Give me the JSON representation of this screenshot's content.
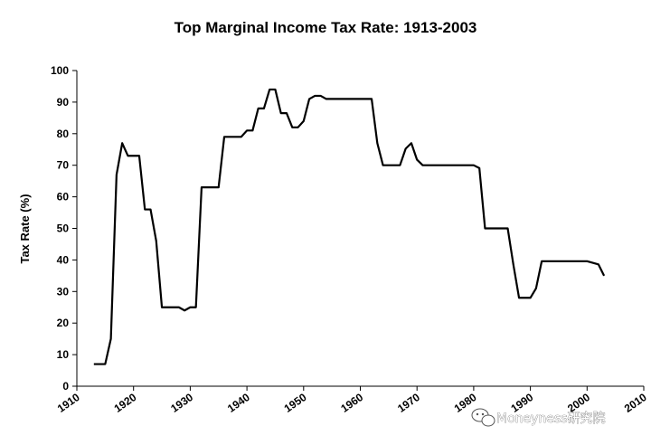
{
  "chart_data": {
    "type": "line",
    "title": "Top Marginal Income Tax Rate: 1913-2003",
    "xlabel": "",
    "ylabel": "Tax Rate (%)",
    "xlim": [
      1910,
      2010
    ],
    "ylim": [
      0,
      100
    ],
    "x_ticks": [
      1910,
      1920,
      1930,
      1940,
      1950,
      1960,
      1970,
      1980,
      1990,
      2000,
      2010
    ],
    "y_ticks": [
      0,
      10,
      20,
      30,
      40,
      50,
      60,
      70,
      80,
      90,
      100
    ],
    "grid": false,
    "series": [
      {
        "name": "",
        "color": "#000000",
        "x": [
          1913,
          1915,
          1916,
          1917,
          1918,
          1919,
          1920,
          1921,
          1922,
          1923,
          1924,
          1925,
          1926,
          1927,
          1928,
          1929,
          1930,
          1931,
          1932,
          1933,
          1934,
          1935,
          1936,
          1937,
          1938,
          1939,
          1940,
          1941,
          1942,
          1943,
          1944,
          1945,
          1946,
          1947,
          1948,
          1949,
          1950,
          1951,
          1952,
          1953,
          1954,
          1955,
          1956,
          1957,
          1958,
          1959,
          1960,
          1961,
          1962,
          1963,
          1964,
          1965,
          1966,
          1967,
          1968,
          1969,
          1970,
          1971,
          1972,
          1973,
          1974,
          1975,
          1976,
          1977,
          1978,
          1979,
          1980,
          1981,
          1982,
          1983,
          1984,
          1985,
          1986,
          1987,
          1988,
          1989,
          1990,
          1991,
          1992,
          1993,
          1994,
          1995,
          1996,
          1997,
          1998,
          1999,
          2000,
          2001,
          2002,
          2003
        ],
        "values": [
          7,
          7,
          15,
          67,
          77,
          73,
          73,
          73,
          56,
          56,
          46,
          25,
          25,
          25,
          25,
          24,
          25,
          25,
          63,
          63,
          63,
          63,
          79,
          79,
          79,
          79,
          81,
          81,
          88,
          88,
          94,
          94,
          86.5,
          86.5,
          82,
          82,
          84,
          91,
          92,
          92,
          91,
          91,
          91,
          91,
          91,
          91,
          91,
          91,
          91,
          77,
          70,
          70,
          70,
          70,
          75.25,
          77,
          71.75,
          70,
          70,
          70,
          70,
          70,
          70,
          70,
          70,
          70,
          70,
          69.1,
          50,
          50,
          50,
          50,
          50,
          38.5,
          28,
          28,
          28,
          31,
          39.6,
          39.6,
          39.6,
          39.6,
          39.6,
          39.6,
          39.6,
          39.6,
          39.6,
          39.1,
          38.6,
          35
        ]
      }
    ]
  },
  "watermark": {
    "text": "Moneyness研究院",
    "icon": "wechat-icon"
  }
}
